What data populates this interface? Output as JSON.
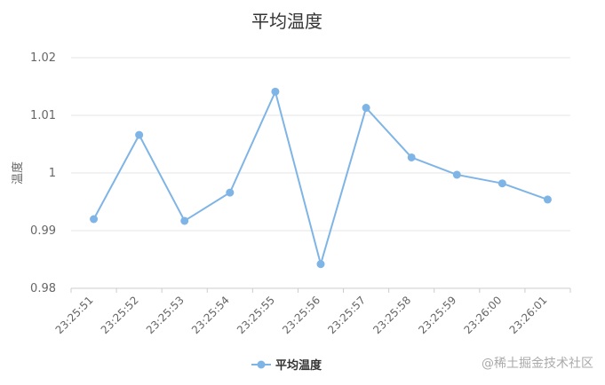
{
  "chart_data": {
    "type": "line",
    "title": "平均温度",
    "ylabel": "温度",
    "xlabel": "",
    "ylim": [
      0.98,
      1.02
    ],
    "yticks": [
      0.98,
      0.99,
      1,
      1.01,
      1.02
    ],
    "ytick_labels": [
      "0.98",
      "0.99",
      "1",
      "1.01",
      "1.02"
    ],
    "categories": [
      "23:25:51",
      "23:25:52",
      "23:25:53",
      "23:25:54",
      "23:25:55",
      "23:25:56",
      "23:25:57",
      "23:25:58",
      "23:25:59",
      "23:26:00",
      "23:26:01"
    ],
    "series": [
      {
        "name": "平均温度",
        "values": [
          0.992,
          1.0066,
          0.9917,
          0.9966,
          1.0141,
          0.9842,
          1.0113,
          1.0027,
          0.9997,
          0.9982,
          0.9954
        ]
      }
    ],
    "grid": true,
    "legend": "bottom-center",
    "colors": {
      "series": "#7fb5e6",
      "grid": "#e6e6e6",
      "axis": "#cccccc"
    }
  },
  "watermark": "@稀土掘金技术社区"
}
